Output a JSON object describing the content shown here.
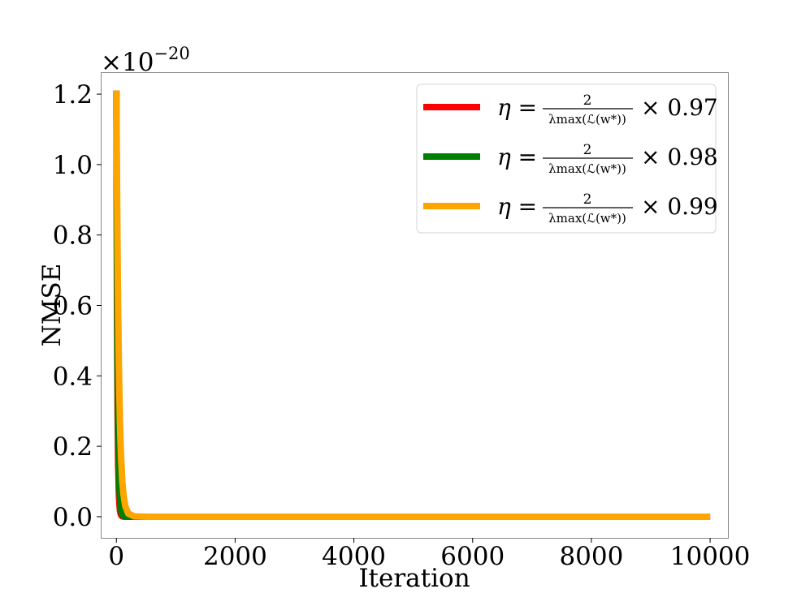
{
  "chart_data": {
    "type": "line",
    "xlabel": "Iteration",
    "ylabel": "NMSE",
    "y_multiplier": {
      "base": "×10",
      "exponent": "−20"
    },
    "xlim": [
      -250,
      10300
    ],
    "ylim": [
      -0.06,
      1.26
    ],
    "x_ticks": [
      0,
      2000,
      4000,
      6000,
      8000,
      10000
    ],
    "x_tick_labels": [
      "0",
      "2000",
      "4000",
      "6000",
      "8000",
      "10000"
    ],
    "y_ticks": [
      0.0,
      0.2,
      0.4,
      0.6,
      0.8,
      1.0,
      1.2
    ],
    "y_tick_labels": [
      "0.0",
      "0.2",
      "0.4",
      "0.6",
      "0.8",
      "1.0",
      "1.2"
    ],
    "grid": false,
    "legend_position": "top-right",
    "series": [
      {
        "legend_label": {
          "lhs": "η =",
          "numerator": "2",
          "denominator": "λmax(ℒ(w*))",
          "factor": "× 0.97"
        },
        "color": "#ff0000",
        "x": [
          0,
          10,
          20,
          30,
          40,
          50,
          60,
          70,
          80,
          100,
          120,
          150,
          200,
          300,
          500,
          1000,
          2000,
          4000,
          6000,
          8000,
          10000
        ],
        "y": [
          1.21,
          0.6,
          0.3,
          0.15,
          0.075,
          0.037,
          0.018,
          0.009,
          0.004,
          0.001,
          0.0003,
          0.0,
          0.0,
          0.0,
          0.0,
          0.0,
          0.0,
          0.0,
          0.0,
          0.0,
          0.0
        ]
      },
      {
        "legend_label": {
          "lhs": "η =",
          "numerator": "2",
          "denominator": "λmax(ℒ(w*))",
          "factor": "× 0.98"
        },
        "color": "#008000",
        "x": [
          0,
          10,
          20,
          30,
          40,
          50,
          60,
          70,
          80,
          100,
          120,
          150,
          200,
          300,
          500,
          1000,
          2000,
          4000,
          6000,
          8000,
          10000
        ],
        "y": [
          1.21,
          0.72,
          0.42,
          0.25,
          0.15,
          0.088,
          0.052,
          0.03,
          0.018,
          0.006,
          0.002,
          0.0005,
          0.0,
          0.0,
          0.0,
          0.0,
          0.0,
          0.0,
          0.0,
          0.0,
          0.0
        ]
      },
      {
        "legend_label": {
          "lhs": "η =",
          "numerator": "2",
          "denominator": "λmax(ℒ(w*))",
          "factor": "× 0.99"
        },
        "color": "#ffa500",
        "x": [
          0,
          10,
          20,
          30,
          40,
          50,
          60,
          70,
          80,
          100,
          120,
          150,
          200,
          300,
          500,
          1000,
          2000,
          4000,
          6000,
          8000,
          10000
        ],
        "y": [
          1.21,
          0.95,
          0.74,
          0.58,
          0.45,
          0.35,
          0.27,
          0.21,
          0.165,
          0.1,
          0.062,
          0.03,
          0.009,
          0.001,
          0.0,
          0.0,
          0.0,
          0.0,
          0.0,
          0.0,
          0.0
        ]
      }
    ]
  }
}
